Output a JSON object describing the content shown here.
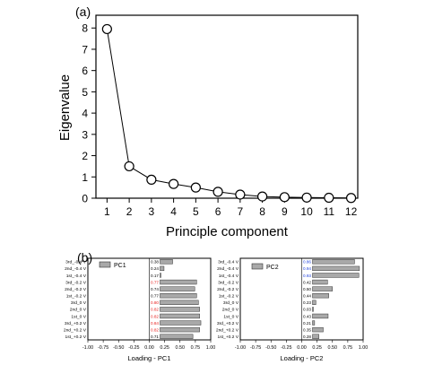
{
  "chart_data": [
    {
      "type": "line",
      "panel_label": "(a)",
      "xlabel": "Principle component",
      "ylabel": "Eigenvalue",
      "x": [
        1,
        2,
        3,
        4,
        5,
        6,
        7,
        8,
        9,
        10,
        11,
        12
      ],
      "xticks": [
        "1",
        "2",
        "3",
        "4",
        "5",
        "6",
        "7",
        "8",
        "9",
        "10",
        "11",
        "12"
      ],
      "xlim": [
        0.5,
        12.3
      ],
      "ylim": [
        0,
        8.6
      ],
      "yticks": [
        "0",
        "1",
        "2",
        "3",
        "4",
        "5",
        "6",
        "7",
        "8"
      ],
      "series": [
        {
          "values": [
            7.95,
            1.5,
            0.87,
            0.67,
            0.5,
            0.3,
            0.17,
            0.08,
            0.05,
            0.03,
            0.02,
            0.01
          ]
        }
      ],
      "grid": false,
      "marker": "open-circle"
    },
    {
      "type": "bar",
      "orientation": "horizontal",
      "panel_label": "(b)",
      "legend": "PC1",
      "xlabel": "Loading - PC1",
      "xlim": [
        -1.0,
        1.0
      ],
      "xticks": [
        "-1.00",
        "-0.75",
        "-0.50",
        "-0.25",
        "0.00",
        "0.25",
        "0.50",
        "0.75",
        "1.00"
      ],
      "categories": [
        "3rd_-0.4 V",
        "2nd_-0.4 V",
        "1st_-0.4 V",
        "3rd_-0.2 V",
        "2nd_-0.2 V",
        "1st_-0.2 V",
        "3rd_0 V",
        "2nd_0 V",
        "1st_0 V",
        "3rd_+0.2 V",
        "2nd_+0.2 V",
        "1st_+0.2 V"
      ],
      "values": [
        0.38,
        0.24,
        0.17,
        0.77,
        0.74,
        0.77,
        0.8,
        0.82,
        0.82,
        0.84,
        0.82,
        0.71
      ],
      "value_labels": [
        "0.38",
        "0.24",
        "0.17",
        "0.77",
        "0.74",
        "0.77",
        "0.80",
        "0.82",
        "0.82",
        "0.84",
        "0.82",
        "0.71"
      ],
      "value_label_colors": [
        "#000000",
        "#000000",
        "#000000",
        "#e8201e",
        "#000000",
        "#000000",
        "#e8201e",
        "#e8201e",
        "#e8201e",
        "#e8201e",
        "#e8201e",
        "#000000"
      ]
    },
    {
      "type": "bar",
      "orientation": "horizontal",
      "legend": "PC2",
      "xlabel": "Loading - PC2",
      "xlim": [
        -1.0,
        1.0
      ],
      "xticks": [
        "-1.00",
        "-0.75",
        "-0.50",
        "-0.25",
        "0.00",
        "0.25",
        "0.50",
        "0.75",
        "1.00"
      ],
      "categories": [
        "3rd_-0.4 V",
        "2nd_-0.4 V",
        "1st_-0.4 V",
        "3rd_-0.2 V",
        "2nd_-0.2 V",
        "1st_-0.2 V",
        "3rd_0 V",
        "2nd_0 V",
        "1st_0 V",
        "3rd_+0.2 V",
        "2nd_+0.2 V",
        "1st_+0.2 V"
      ],
      "values": [
        0.86,
        0.94,
        0.93,
        0.42,
        0.5,
        0.44,
        0.23,
        0.03,
        0.43,
        0.21,
        0.35,
        0.28
      ],
      "value_labels": [
        "0.86",
        "0.94",
        "0.93",
        "0.42",
        "0.50",
        "0.44",
        "0.23",
        "0.03",
        "0.43",
        "0.21",
        "0.35",
        "0.28"
      ],
      "value_label_colors": [
        "#1d3fdd",
        "#1d3fdd",
        "#1d3fdd",
        "#000000",
        "#000000",
        "#000000",
        "#000000",
        "#000000",
        "#000000",
        "#000000",
        "#000000",
        "#000000"
      ]
    }
  ],
  "colors": {
    "bar_fill": "#a9a9a9",
    "bar_stroke": "#333333",
    "highlight_red": "#e8201e",
    "highlight_blue": "#1d3fdd"
  }
}
